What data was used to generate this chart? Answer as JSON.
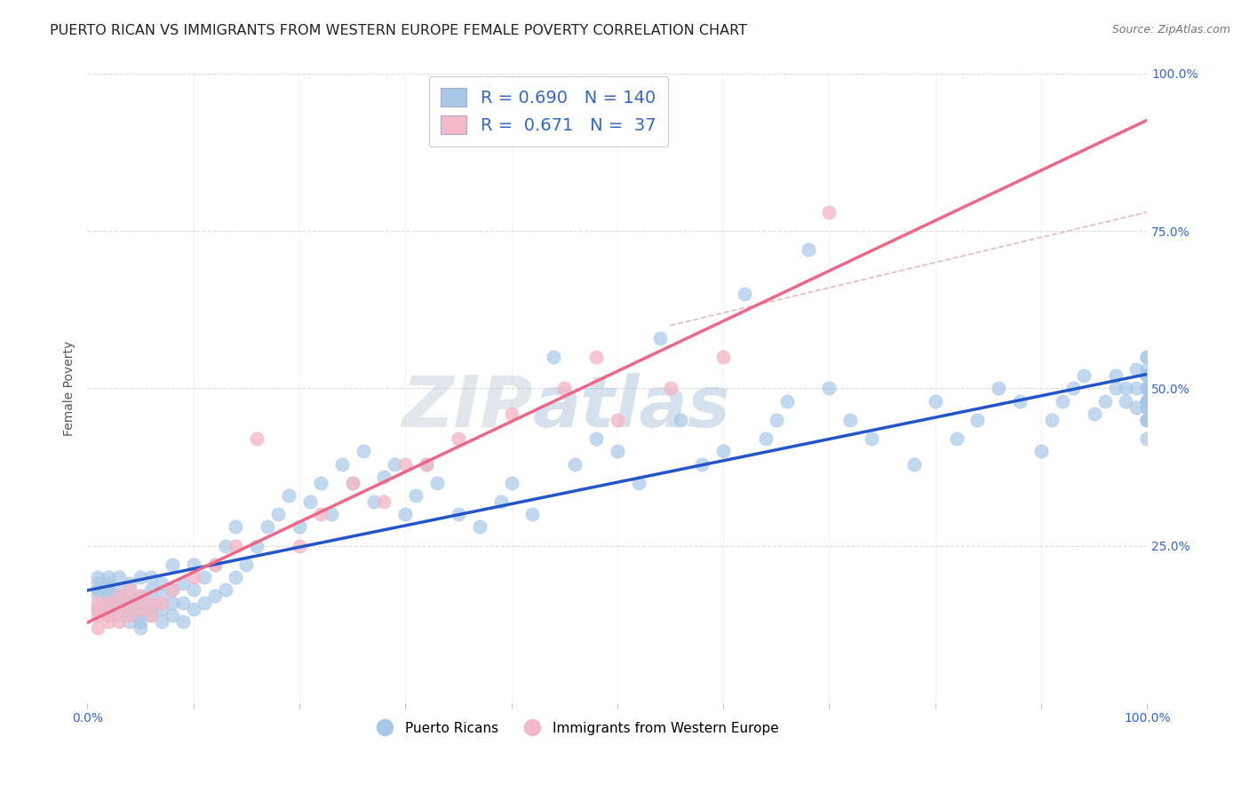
{
  "title": "PUERTO RICAN VS IMMIGRANTS FROM WESTERN EUROPE FEMALE POVERTY CORRELATION CHART",
  "source": "Source: ZipAtlas.com",
  "ylabel": "Female Poverty",
  "color_blue": "#a8c8e8",
  "color_pink": "#f4b8c8",
  "color_blue_line": "#2255cc",
  "color_pink_line": "#ee6688",
  "color_dashed": "#ddaaaa",
  "watermark_zip": "ZIP",
  "watermark_atlas": "atlas",
  "background_color": "#ffffff",
  "grid_color": "#dddddd",
  "title_fontsize": 11.5,
  "label_fontsize": 10,
  "tick_fontsize": 10,
  "tick_color_blue": "#3366cc",
  "tick_color_gray": "#888888",
  "N_blue": 140,
  "N_pink": 37,
  "R_blue": 0.69,
  "R_pink": 0.671,
  "blue_x": [
    0.01,
    0.01,
    0.01,
    0.01,
    0.01,
    0.02,
    0.02,
    0.02,
    0.02,
    0.02,
    0.02,
    0.02,
    0.03,
    0.03,
    0.03,
    0.03,
    0.03,
    0.03,
    0.04,
    0.04,
    0.04,
    0.04,
    0.04,
    0.04,
    0.05,
    0.05,
    0.05,
    0.05,
    0.05,
    0.05,
    0.06,
    0.06,
    0.06,
    0.06,
    0.06,
    0.07,
    0.07,
    0.07,
    0.07,
    0.08,
    0.08,
    0.08,
    0.08,
    0.09,
    0.09,
    0.09,
    0.1,
    0.1,
    0.1,
    0.11,
    0.11,
    0.12,
    0.12,
    0.13,
    0.13,
    0.14,
    0.14,
    0.15,
    0.16,
    0.17,
    0.18,
    0.19,
    0.2,
    0.21,
    0.22,
    0.23,
    0.24,
    0.25,
    0.26,
    0.27,
    0.28,
    0.29,
    0.3,
    0.31,
    0.32,
    0.33,
    0.35,
    0.37,
    0.39,
    0.4,
    0.42,
    0.44,
    0.46,
    0.48,
    0.5,
    0.52,
    0.54,
    0.56,
    0.58,
    0.6,
    0.62,
    0.64,
    0.65,
    0.66,
    0.68,
    0.7,
    0.72,
    0.74,
    0.78,
    0.8,
    0.82,
    0.84,
    0.86,
    0.88,
    0.9,
    0.91,
    0.92,
    0.93,
    0.94,
    0.95,
    0.96,
    0.97,
    0.97,
    0.98,
    0.98,
    0.99,
    0.99,
    0.99,
    1.0,
    1.0,
    1.0,
    1.0,
    1.0,
    1.0,
    1.0,
    1.0,
    1.0,
    1.0,
    1.0,
    1.0,
    1.0,
    1.0,
    1.0,
    1.0,
    1.0,
    1.0,
    1.0,
    1.0,
    1.0,
    1.0
  ],
  "blue_y": [
    0.15,
    0.17,
    0.18,
    0.19,
    0.2,
    0.14,
    0.15,
    0.16,
    0.17,
    0.18,
    0.19,
    0.2,
    0.14,
    0.15,
    0.16,
    0.17,
    0.18,
    0.2,
    0.13,
    0.14,
    0.15,
    0.16,
    0.17,
    0.19,
    0.12,
    0.13,
    0.14,
    0.15,
    0.17,
    0.2,
    0.14,
    0.15,
    0.16,
    0.18,
    0.2,
    0.13,
    0.15,
    0.17,
    0.19,
    0.14,
    0.16,
    0.18,
    0.22,
    0.13,
    0.16,
    0.19,
    0.15,
    0.18,
    0.22,
    0.16,
    0.2,
    0.17,
    0.22,
    0.18,
    0.25,
    0.2,
    0.28,
    0.22,
    0.25,
    0.28,
    0.3,
    0.33,
    0.28,
    0.32,
    0.35,
    0.3,
    0.38,
    0.35,
    0.4,
    0.32,
    0.36,
    0.38,
    0.3,
    0.33,
    0.38,
    0.35,
    0.3,
    0.28,
    0.32,
    0.35,
    0.3,
    0.55,
    0.38,
    0.42,
    0.4,
    0.35,
    0.58,
    0.45,
    0.38,
    0.4,
    0.65,
    0.42,
    0.45,
    0.48,
    0.72,
    0.5,
    0.45,
    0.42,
    0.38,
    0.48,
    0.42,
    0.45,
    0.5,
    0.48,
    0.4,
    0.45,
    0.48,
    0.5,
    0.52,
    0.46,
    0.48,
    0.5,
    0.52,
    0.48,
    0.5,
    0.47,
    0.5,
    0.53,
    0.45,
    0.48,
    0.5,
    0.52,
    0.47,
    0.5,
    0.45,
    0.48,
    0.42,
    0.5,
    0.53,
    0.48,
    0.55,
    0.5,
    0.47,
    0.45,
    0.48,
    0.55,
    0.5,
    0.52,
    0.48,
    0.5
  ],
  "pink_x": [
    0.01,
    0.01,
    0.01,
    0.01,
    0.02,
    0.02,
    0.02,
    0.03,
    0.03,
    0.03,
    0.04,
    0.04,
    0.04,
    0.05,
    0.05,
    0.06,
    0.06,
    0.07,
    0.08,
    0.1,
    0.12,
    0.14,
    0.16,
    0.2,
    0.22,
    0.25,
    0.28,
    0.3,
    0.32,
    0.35,
    0.4,
    0.45,
    0.48,
    0.5,
    0.55,
    0.6,
    0.7
  ],
  "pink_y": [
    0.12,
    0.14,
    0.15,
    0.16,
    0.13,
    0.14,
    0.16,
    0.13,
    0.15,
    0.17,
    0.14,
    0.16,
    0.18,
    0.15,
    0.17,
    0.14,
    0.16,
    0.16,
    0.18,
    0.2,
    0.22,
    0.25,
    0.42,
    0.25,
    0.3,
    0.35,
    0.32,
    0.38,
    0.38,
    0.42,
    0.46,
    0.5,
    0.55,
    0.45,
    0.5,
    0.55,
    0.78
  ]
}
